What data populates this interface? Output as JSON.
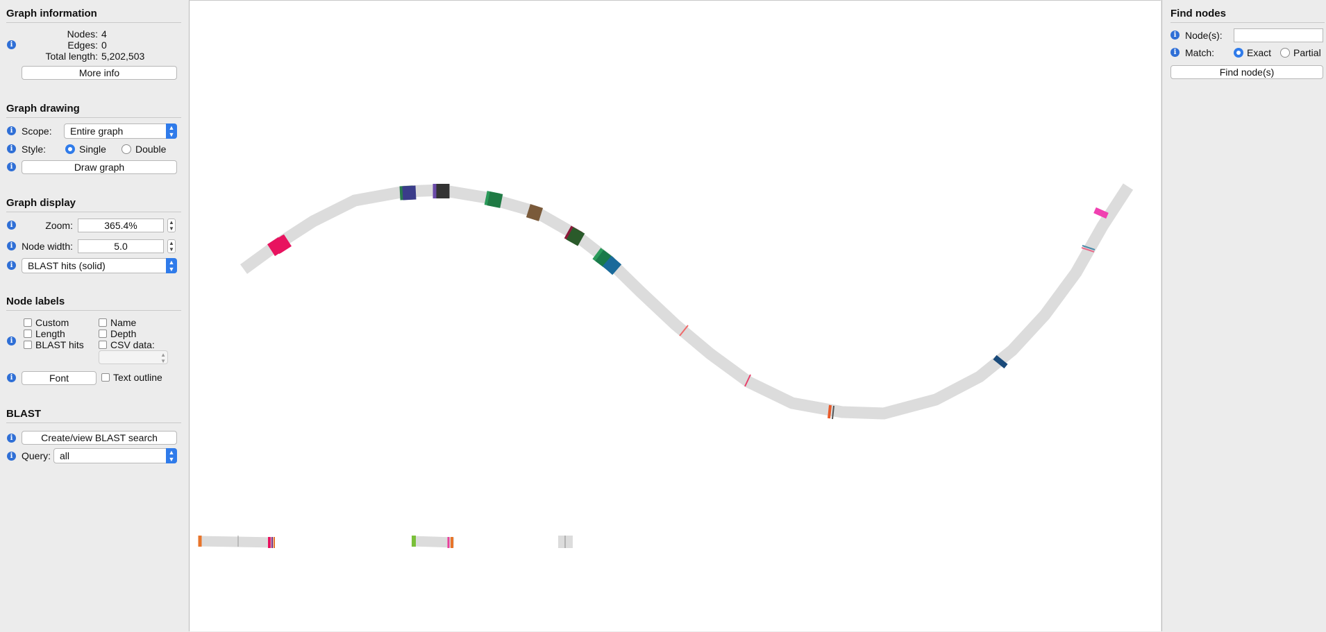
{
  "graph_information": {
    "title": "Graph information",
    "nodes_label": "Nodes:",
    "nodes_value": "4",
    "edges_label": "Edges:",
    "edges_value": "0",
    "length_label": "Total length:",
    "length_value": "5,202,503",
    "more_info": "More info"
  },
  "graph_drawing": {
    "title": "Graph drawing",
    "scope_label": "Scope:",
    "scope_value": "Entire graph",
    "style_label": "Style:",
    "style_single": "Single",
    "style_double": "Double",
    "style_selected": "Single",
    "draw_button": "Draw graph"
  },
  "graph_display": {
    "title": "Graph display",
    "zoom_label": "Zoom:",
    "zoom_value": "365.4%",
    "node_width_label": "Node width:",
    "node_width_value": "5.0",
    "colour_scheme": "BLAST hits (solid)"
  },
  "node_labels": {
    "title": "Node labels",
    "custom": "Custom",
    "name": "Name",
    "length": "Length",
    "depth": "Depth",
    "blast_hits": "BLAST hits",
    "csv_data": "CSV data:",
    "font_button": "Font",
    "text_outline": "Text outline"
  },
  "blast": {
    "title": "BLAST",
    "search_button": "Create/view BLAST search",
    "query_label": "Query:",
    "query_value": "all"
  },
  "find_nodes": {
    "title": "Find nodes",
    "nodes_label": "Node(s):",
    "nodes_input": "",
    "match_label": "Match:",
    "exact": "Exact",
    "partial": "Partial",
    "match_selected": "Exact",
    "find_button": "Find node(s)"
  },
  "colors": {
    "accent": "#2f7bea",
    "node_fill": "#dcdcdc",
    "info_icon": "#2f6fd6"
  }
}
